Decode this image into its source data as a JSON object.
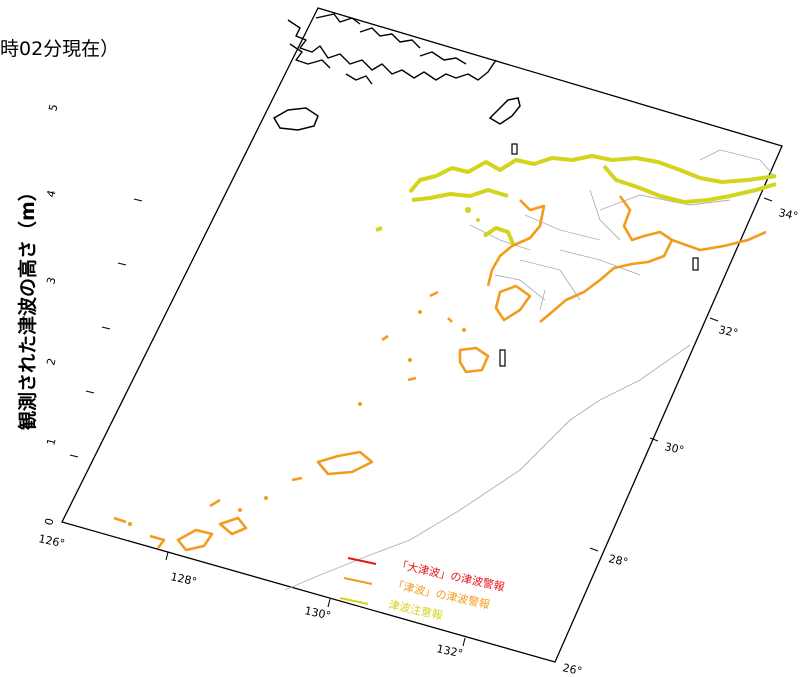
{
  "header": {
    "title_fragment": "時02分現在）"
  },
  "axis": {
    "label": "観測された津波の高さ（m）",
    "height_ticks": [
      "0",
      "1",
      "2",
      "3",
      "4",
      "5"
    ],
    "longitude_ticks": [
      "126°",
      "128°",
      "130°",
      "132°"
    ],
    "latitude_ticks": [
      "26°",
      "28°",
      "30°",
      "32°",
      "34°"
    ]
  },
  "legend": {
    "items": [
      {
        "label": "「大津波」の津波警報",
        "color": "#e8141c"
      },
      {
        "label": "「津波」の津波警報",
        "color": "#f39b1e"
      },
      {
        "label": "津波注意報",
        "color": "#d4d41c"
      }
    ]
  },
  "colors": {
    "major_warning": "#e8141c",
    "warning": "#f39b1e",
    "advisory": "#d4d41c",
    "land_outline": "#000000",
    "boundary": "#b0b0b0"
  }
}
